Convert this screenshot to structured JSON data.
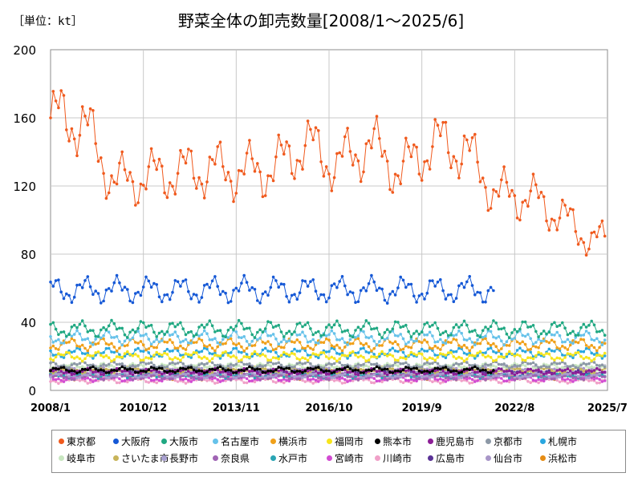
{
  "header": {
    "unit": "［単位：kt］",
    "title": "野菜全体の卸売数量[2008/1～2025/6]"
  },
  "chart_data": {
    "type": "line",
    "title": "野菜全体の卸売数量[2008/1～2025/6]",
    "ylabel": "［単位：kt］",
    "ylim": [
      0,
      200
    ],
    "yticks": [
      "0",
      "40",
      "80",
      "120",
      "160",
      "200"
    ],
    "xticks": [
      "2008/1",
      "2010/12",
      "2013/11",
      "2016/10",
      "2019/9",
      "2022/8",
      "2025/7"
    ],
    "grid": true,
    "legend_position": "bottom",
    "series": [
      {
        "name": "東京都",
        "color": "#f05a1e",
        "start": "2008-01",
        "end": "2025-06",
        "approx_level": 130,
        "yearly_approx": [
          {
            "year": 2008,
            "value": 160
          },
          {
            "year": 2009,
            "value": 158
          },
          {
            "year": 2010,
            "value": 122
          },
          {
            "year": 2011,
            "value": 125
          },
          {
            "year": 2012,
            "value": 128
          },
          {
            "year": 2013,
            "value": 130
          },
          {
            "year": 2014,
            "value": 128
          },
          {
            "year": 2015,
            "value": 130
          },
          {
            "year": 2016,
            "value": 145
          },
          {
            "year": 2017,
            "value": 132
          },
          {
            "year": 2018,
            "value": 145
          },
          {
            "year": 2019,
            "value": 128
          },
          {
            "year": 2020,
            "value": 145
          },
          {
            "year": 2021,
            "value": 142
          },
          {
            "year": 2022,
            "value": 115
          },
          {
            "year": 2023,
            "value": 114
          },
          {
            "year": 2024,
            "value": 103
          },
          {
            "year": 2025,
            "value": 88
          }
        ]
      },
      {
        "name": "大阪府",
        "color": "#1558d6",
        "start": "2008-01",
        "end": "2021-12",
        "approx_level": 59
      },
      {
        "name": "大阪市",
        "color": "#20a882",
        "start": "2008-01",
        "end": "2025-06",
        "approx_level": 36
      },
      {
        "name": "名古屋市",
        "color": "#66c2ea",
        "start": "2008-01",
        "end": "2025-06",
        "approx_level": 31
      },
      {
        "name": "横浜市",
        "color": "#f0a019",
        "start": "2008-01",
        "end": "2025-06",
        "approx_level": 27
      },
      {
        "name": "福岡市",
        "color": "#f7e51c",
        "start": "2008-01",
        "end": "2025-06",
        "approx_level": 20
      },
      {
        "name": "熊本市",
        "color": "#000000",
        "start": "2008-01",
        "end": "2021-12",
        "approx_level": 12
      },
      {
        "name": "鹿児島市",
        "color": "#8c1e96",
        "start": "2008-01",
        "end": "2025-06",
        "approx_level": 11
      },
      {
        "name": "京都市",
        "color": "#8c98a6",
        "start": "2008-01",
        "end": "2025-06",
        "approx_level": 15
      },
      {
        "name": "札幌市",
        "color": "#29a7e0",
        "start": "2008-01",
        "end": "2025-06",
        "approx_level": 22
      },
      {
        "name": "岐阜市",
        "color": "#c8e6c0",
        "start": "2008-01",
        "end": "2025-06",
        "approx_level": 14
      },
      {
        "name": "さいたま市",
        "color": "#c8b45a",
        "start": "2008-01",
        "end": "2025-06",
        "approx_level": 12
      },
      {
        "name": "長野市",
        "color": "#a8a0d0",
        "start": "2008-01",
        "end": "2025-06",
        "approx_level": 9
      },
      {
        "name": "奈良県",
        "color": "#a064b4",
        "start": "2008-01",
        "end": "2025-06",
        "approx_level": 8
      },
      {
        "name": "水戸市",
        "color": "#2aa5b4",
        "start": "2008-01",
        "end": "2025-06",
        "approx_level": 9
      },
      {
        "name": "宮崎市",
        "color": "#d24bd2",
        "start": "2008-01",
        "end": "2025-06",
        "approx_level": 7
      },
      {
        "name": "川崎市",
        "color": "#f0a0c8",
        "start": "2008-01",
        "end": "2025-06",
        "approx_level": 6
      },
      {
        "name": "広島市",
        "color": "#5a3296",
        "start": "2008-01",
        "end": "2025-06",
        "approx_level": 10
      },
      {
        "name": "仙台市",
        "color": "#a896c8",
        "start": "2008-01",
        "end": "2025-06",
        "approx_level": 13
      },
      {
        "name": "浜松市",
        "color": "#e68c14",
        "start": "2008-01",
        "end": "2025-06",
        "approx_level": 8
      }
    ]
  }
}
